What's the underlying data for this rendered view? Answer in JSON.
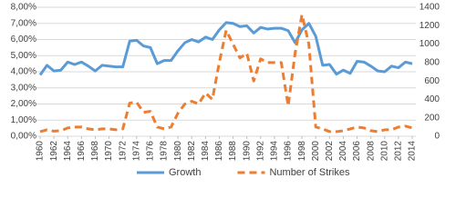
{
  "chart_data": {
    "type": "line",
    "x": [
      1960,
      1961,
      1962,
      1963,
      1964,
      1965,
      1966,
      1967,
      1968,
      1969,
      1970,
      1971,
      1972,
      1973,
      1974,
      1975,
      1976,
      1977,
      1978,
      1979,
      1980,
      1981,
      1982,
      1983,
      1984,
      1985,
      1986,
      1987,
      1988,
      1989,
      1990,
      1991,
      1992,
      1993,
      1994,
      1995,
      1996,
      1997,
      1998,
      1999,
      2000,
      2001,
      2002,
      2003,
      2004,
      2005,
      2006,
      2007,
      2008,
      2009,
      2010,
      2011,
      2012,
      2013,
      2014
    ],
    "xlim": [
      1960,
      2014
    ],
    "xticks": [
      1960,
      1962,
      1964,
      1966,
      1968,
      1970,
      1972,
      1974,
      1976,
      1978,
      1980,
      1982,
      1984,
      1986,
      1988,
      1990,
      1992,
      1994,
      1996,
      1998,
      2000,
      2002,
      2004,
      2006,
      2008,
      2010,
      2012,
      2014
    ],
    "series": [
      {
        "name": "Growth",
        "color": "#5b9bd5",
        "dash": false,
        "values": [
          3.8,
          4.4,
          4.05,
          4.1,
          4.6,
          4.45,
          4.6,
          4.35,
          4.05,
          4.4,
          4.35,
          4.3,
          4.3,
          5.9,
          5.95,
          5.6,
          5.5,
          4.5,
          4.7,
          4.7,
          5.3,
          5.8,
          6.0,
          5.85,
          6.15,
          6.0,
          6.6,
          7.05,
          7.0,
          6.8,
          6.85,
          6.4,
          6.75,
          6.65,
          6.7,
          6.7,
          6.55,
          5.8,
          6.6,
          7.0,
          6.2,
          4.4,
          4.45,
          3.85,
          4.1,
          3.9,
          4.65,
          4.6,
          4.35,
          4.05,
          4.0,
          4.35,
          4.25,
          4.6,
          4.5
        ]
      },
      {
        "name": "Number of Strikes",
        "color": "#ed7d31",
        "dash": true,
        "axis": "y2",
        "values": [
          50,
          70,
          55,
          60,
          90,
          100,
          100,
          80,
          70,
          80,
          80,
          70,
          80,
          360,
          370,
          260,
          270,
          100,
          80,
          100,
          250,
          350,
          380,
          350,
          470,
          400,
          800,
          1150,
          1000,
          850,
          900,
          600,
          840,
          800,
          800,
          800,
          330,
          900,
          1320,
          1000,
          100,
          80,
          50,
          50,
          60,
          80,
          100,
          90,
          60,
          50,
          70,
          70,
          100,
          110,
          90
        ]
      }
    ],
    "ylim": [
      0,
      8
    ],
    "yticks": [
      {
        "value": 0,
        "label": "0,00%"
      },
      {
        "value": 1,
        "label": "1,00%"
      },
      {
        "value": 2,
        "label": "2,00%"
      },
      {
        "value": 3,
        "label": "3,00%"
      },
      {
        "value": 4,
        "label": "4,00%"
      },
      {
        "value": 5,
        "label": "5,00%"
      },
      {
        "value": 6,
        "label": "6,00%"
      },
      {
        "value": 7,
        "label": "7,00%"
      },
      {
        "value": 8,
        "label": "8,00%"
      }
    ],
    "y2lim": [
      0,
      1400
    ],
    "y2ticks": [
      0,
      200,
      400,
      600,
      800,
      1000,
      1200,
      1400
    ],
    "grid": true,
    "legend": "bottom"
  }
}
